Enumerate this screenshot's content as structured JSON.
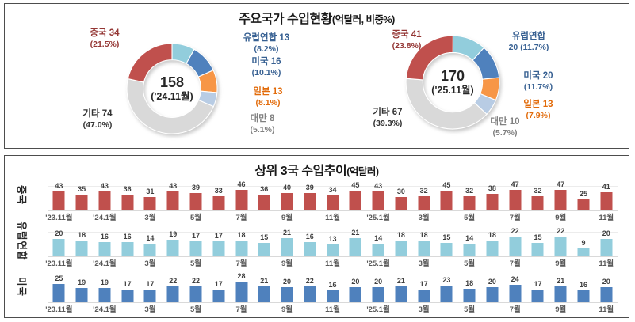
{
  "panel1": {
    "title": "주요국가 수입현황",
    "title_sub": "(억달러, 비중%)",
    "donuts": [
      {
        "center_value": "158",
        "center_period": "('24.11월)",
        "segments": [
          {
            "name": "유럽연합",
            "share": 8.2,
            "color": "#92CDDC"
          },
          {
            "name": "미국",
            "share": 10.1,
            "color": "#4F81BD"
          },
          {
            "name": "일본",
            "share": 8.1,
            "color": "#F79646"
          },
          {
            "name": "대만",
            "share": 5.1,
            "color": "#B8CCE4"
          },
          {
            "name": "기타",
            "share": 47.0,
            "color": "#D9D9D9"
          },
          {
            "name": "중국",
            "share": 21.5,
            "color": "#C0504D"
          }
        ],
        "labels": [
          {
            "key": "china",
            "line1": "중국 34",
            "line2": "(21.5%)",
            "color": "#943634"
          },
          {
            "key": "eu",
            "line1": "유럽연합 13",
            "line2": "(8.2%)",
            "color": "#376092"
          },
          {
            "key": "us",
            "line1": "미국 16",
            "line2": "(10.1%)",
            "color": "#376092"
          },
          {
            "key": "jp",
            "line1": "일본 13",
            "line2": "(8.1%)",
            "color": "#E26B0A"
          },
          {
            "key": "tw",
            "line1": "대만 8",
            "line2": "(5.1%)",
            "color": "#808080"
          },
          {
            "key": "etc",
            "line1": "기타 74",
            "line2": "(47.0%)",
            "color": "#333333"
          }
        ]
      },
      {
        "center_value": "170",
        "center_period": "('25.11월)",
        "segments": [
          {
            "name": "유럽연합",
            "share": 11.7,
            "color": "#92CDDC"
          },
          {
            "name": "미국",
            "share": 11.7,
            "color": "#4F81BD"
          },
          {
            "name": "일본",
            "share": 7.9,
            "color": "#F79646"
          },
          {
            "name": "대만",
            "share": 5.7,
            "color": "#B8CCE4"
          },
          {
            "name": "기타",
            "share": 39.3,
            "color": "#D9D9D9"
          },
          {
            "name": "중국",
            "share": 23.8,
            "color": "#C0504D"
          }
        ],
        "labels": [
          {
            "key": "china",
            "line1": "중국 41",
            "line2": "(23.8%)",
            "color": "#943634"
          },
          {
            "key": "eu",
            "line1": "유럽연합",
            "line2": "20 (11.7%)",
            "color": "#376092"
          },
          {
            "key": "us",
            "line1": "미국 20",
            "line2": "(11.7%)",
            "color": "#376092"
          },
          {
            "key": "jp",
            "line1": "일본 13",
            "line2": "(7.9%)",
            "color": "#E26B0A"
          },
          {
            "key": "tw",
            "line1": "대만 10",
            "line2": "(5.7%)",
            "color": "#808080"
          },
          {
            "key": "etc",
            "line1": "기타 67",
            "line2": "(39.3%)",
            "color": "#333333"
          }
        ]
      }
    ]
  },
  "panel2": {
    "title": "상위 3국 수입추이",
    "title_sub": "(억달러)",
    "x_tick_labels": [
      "'23.11월",
      "'24.1월",
      "3월",
      "5월",
      "7월",
      "9월",
      "11월",
      "'25.1월",
      "3월",
      "5월",
      "7월",
      "9월",
      "11월"
    ],
    "rows": [
      {
        "label": "중국",
        "color": "#C0504D",
        "scale_max": 50,
        "values": [
          43,
          35,
          43,
          36,
          31,
          43,
          39,
          33,
          46,
          36,
          40,
          39,
          34,
          45,
          43,
          30,
          32,
          45,
          32,
          38,
          47,
          32,
          47,
          25,
          41
        ]
      },
      {
        "label": "유럽연합",
        "color": "#92CDDC",
        "scale_max": 25,
        "values": [
          20,
          18,
          16,
          16,
          14,
          19,
          17,
          17,
          18,
          15,
          21,
          16,
          13,
          21,
          14,
          18,
          18,
          15,
          14,
          18,
          22,
          15,
          22,
          9,
          20
        ]
      },
      {
        "label": "미국",
        "color": "#4F81BD",
        "scale_max": 30,
        "values": [
          25,
          19,
          19,
          17,
          17,
          22,
          22,
          17,
          28,
          21,
          20,
          22,
          16,
          20,
          20,
          21,
          17,
          23,
          18,
          20,
          24,
          17,
          21,
          16,
          20
        ]
      }
    ]
  },
  "chart_data": [
    {
      "type": "pie",
      "subtype": "donut",
      "title": "주요국가 수입현황(억달러, 비중%)",
      "period": "'24.11월",
      "center_total": 158,
      "labels": [
        "유럽연합",
        "미국",
        "일본",
        "대만",
        "기타",
        "중국"
      ],
      "values": [
        13,
        16,
        13,
        8,
        74,
        34
      ],
      "shares_pct": [
        8.2,
        10.1,
        8.1,
        5.1,
        47.0,
        21.5
      ],
      "colors": [
        "#92CDDC",
        "#4F81BD",
        "#F79646",
        "#B8CCE4",
        "#D9D9D9",
        "#C0504D"
      ],
      "layout": "segments clockwise from 12 o'clock; callout labels around ring; totals in center"
    },
    {
      "type": "pie",
      "subtype": "donut",
      "title": "주요국가 수입현황(억달러, 비중%)",
      "period": "'25.11월",
      "center_total": 170,
      "labels": [
        "유럽연합",
        "미국",
        "일본",
        "대만",
        "기타",
        "중국"
      ],
      "values": [
        20,
        20,
        13,
        10,
        67,
        41
      ],
      "shares_pct": [
        11.7,
        11.7,
        7.9,
        5.7,
        39.3,
        23.8
      ],
      "colors": [
        "#92CDDC",
        "#4F81BD",
        "#F79646",
        "#B8CCE4",
        "#D9D9D9",
        "#C0504D"
      ],
      "layout": "segments clockwise from 12 o'clock; callout labels around ring; totals in center"
    },
    {
      "type": "bar",
      "title": "상위 3국 수입추이(억달러)",
      "n_points": 25,
      "x_ticks": [
        "'23.11월",
        "'24.1월",
        "3월",
        "5월",
        "7월",
        "9월",
        "11월",
        "'25.1월",
        "3월",
        "5월",
        "7월",
        "9월",
        "11월"
      ],
      "x_tick_note": "monthly bars from '23.11월 to '25.11월, tick label under every 2nd bar",
      "series": [
        {
          "name": "중국",
          "color": "#C0504D",
          "values": [
            43,
            35,
            43,
            36,
            31,
            43,
            39,
            33,
            46,
            36,
            40,
            39,
            34,
            45,
            43,
            30,
            32,
            45,
            32,
            38,
            47,
            32,
            47,
            25,
            41
          ]
        },
        {
          "name": "유럽연합",
          "color": "#92CDDC",
          "values": [
            20,
            18,
            16,
            16,
            14,
            19,
            17,
            17,
            18,
            15,
            21,
            16,
            13,
            21,
            14,
            18,
            18,
            15,
            14,
            18,
            22,
            15,
            22,
            9,
            20
          ]
        },
        {
          "name": "미국",
          "color": "#4F81BD",
          "values": [
            25,
            19,
            19,
            17,
            17,
            22,
            22,
            17,
            28,
            21,
            20,
            22,
            16,
            20,
            20,
            21,
            17,
            23,
            18,
            20,
            24,
            17,
            21,
            16,
            20
          ]
        }
      ],
      "legend": "none; row labels on left axis, value labels above each bar, grid minimal"
    }
  ]
}
